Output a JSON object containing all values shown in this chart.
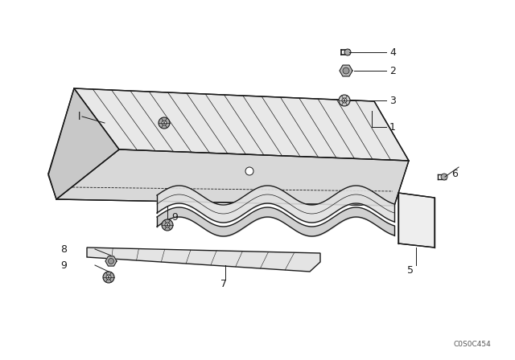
{
  "bg_color": "#ffffff",
  "line_color": "#1a1a1a",
  "fig_width": 6.4,
  "fig_height": 4.48,
  "dpi": 100,
  "watermark": "C0S0C454",
  "fs_label": 8.5
}
